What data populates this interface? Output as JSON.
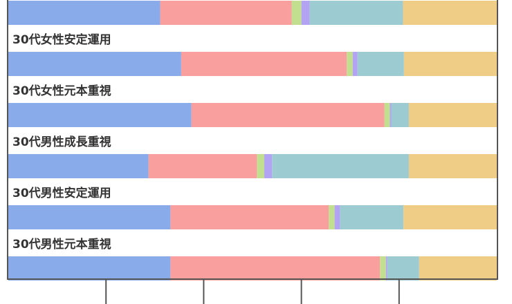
{
  "chart_data": {
    "type": "bar",
    "orientation": "horizontal",
    "stacked": true,
    "normalized": true,
    "xlim": [
      0,
      100
    ],
    "grid": false,
    "legend": "none",
    "categories": [
      "",
      "30代女性安定運用",
      "30代女性元本重視",
      "30代男性成長重視",
      "30代男性安定運用",
      "30代男性元本重視"
    ],
    "series": [
      {
        "color": "#8aabea",
        "values": [
          31.1,
          35.4,
          37.5,
          28.7,
          33.2,
          33.2
        ]
      },
      {
        "color": "#f9a09e",
        "values": [
          26.9,
          33.9,
          39.5,
          22.2,
          32.4,
          42.9
        ]
      },
      {
        "color": "#c2df8f",
        "values": [
          2.0,
          1.2,
          1.1,
          1.5,
          1.2,
          1.2
        ]
      },
      {
        "color": "#b2a4f2",
        "values": [
          1.7,
          1.0,
          0.3,
          1.6,
          1.1,
          0.3
        ]
      },
      {
        "color": "#9ccbd2",
        "values": [
          19.1,
          9.5,
          3.6,
          28.0,
          13.0,
          6.5
        ]
      },
      {
        "color": "#f0cd87",
        "values": [
          19.2,
          19.0,
          18.0,
          18.0,
          19.1,
          15.9
        ]
      }
    ]
  }
}
